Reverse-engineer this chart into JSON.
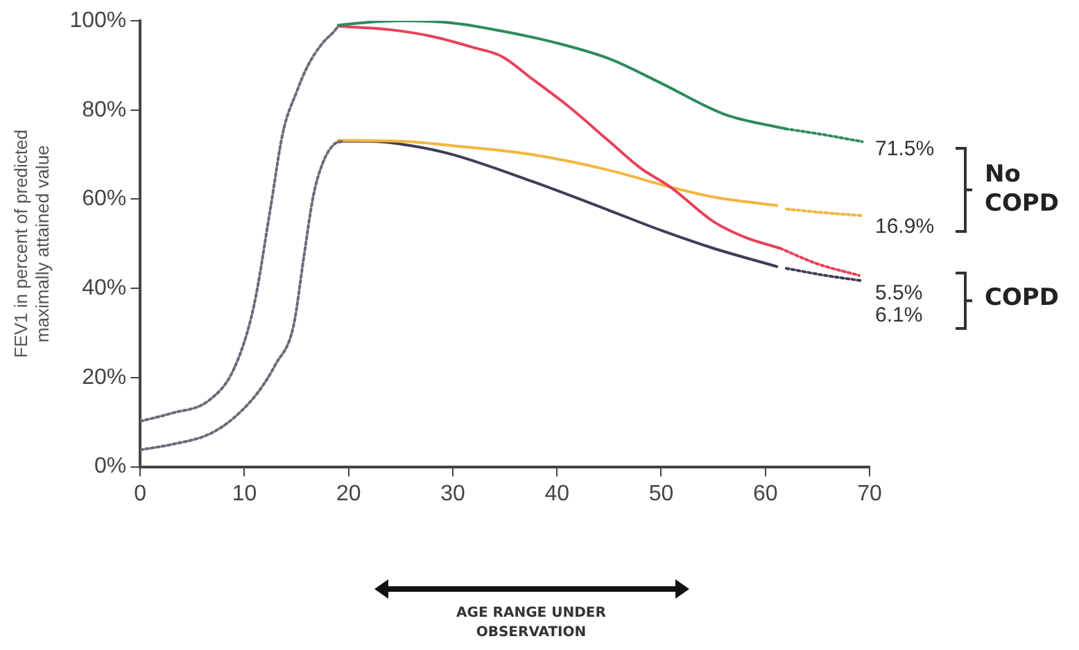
{
  "chart_data": {
    "type": "line",
    "ylabel": "FEV1 in percent of predicted maximally attained value",
    "xlim": [
      0,
      70
    ],
    "xticks": [
      0,
      10,
      20,
      30,
      40,
      50,
      60,
      70
    ],
    "ylim": [
      0,
      100
    ],
    "yticks": [
      {
        "value": 0,
        "label": "0%"
      },
      {
        "value": 20,
        "label": "20%"
      },
      {
        "value": 40,
        "label": "40%"
      },
      {
        "value": 60,
        "label": "60%"
      },
      {
        "value": 80,
        "label": "80%"
      },
      {
        "value": 100,
        "label": "100%"
      }
    ],
    "grid": false,
    "legend": false,
    "marker": "none",
    "series": [
      {
        "color": "#6a6a78",
        "line_style": "dotted",
        "x": [
          0,
          3,
          6.6,
          9,
          10.9,
          12.5,
          13.7,
          15,
          16.1,
          17.5,
          18.6,
          19
        ],
        "values": [
          10.2,
          12,
          14.9,
          22,
          36,
          58,
          75,
          84,
          90,
          95,
          97.6,
          98.8
        ]
      },
      {
        "color": "#6a6a78",
        "line_style": "dotted",
        "x": [
          0,
          3,
          6.6,
          9,
          11.4,
          13,
          14.7,
          15.7,
          16.6,
          17.5,
          18.6,
          19.5
        ],
        "values": [
          3.8,
          5,
          7.3,
          11,
          17,
          23,
          31.5,
          47,
          60.6,
          68,
          72.3,
          73
        ]
      },
      {
        "color": "#2e8b5e",
        "line_style": "solid",
        "x": [
          19,
          22,
          25,
          30,
          34.7,
          40,
          45,
          50,
          56.1,
          61.9
        ],
        "values": [
          99,
          99.7,
          100,
          99.5,
          97.7,
          95,
          91.5,
          86,
          79,
          75.8
        ]
      },
      {
        "color": "#2e8b5e",
        "line_style": "dotted",
        "x": [
          61.9,
          65.5,
          69.3
        ],
        "values": [
          75.8,
          74.5,
          72.9
        ]
      },
      {
        "color": "#e8415a",
        "line_style": "solid",
        "x": [
          19,
          24,
          28,
          32,
          34.7,
          37.6,
          41,
          45,
          48,
          50.9,
          55,
          58,
          61.4
        ],
        "values": [
          98.8,
          98,
          96.5,
          94,
          92,
          87,
          81,
          73,
          67,
          62.7,
          55,
          51.5,
          49
        ]
      },
      {
        "color": "#e8415a",
        "line_style": "dotted",
        "x": [
          61.4,
          65,
          69
        ],
        "values": [
          49,
          45.5,
          42.9
        ]
      },
      {
        "color": "#f2b63e",
        "line_style": "solid",
        "x": [
          19,
          25,
          30,
          37.6,
          45,
          50.9,
          55,
          61.1
        ],
        "values": [
          73.2,
          73,
          72,
          70,
          66.5,
          62.7,
          60.5,
          58.6
        ]
      },
      {
        "color": "#f2b63e",
        "line_style": "dotted",
        "x": [
          62,
          65.5,
          69.3
        ],
        "values": [
          57.8,
          57,
          56.3
        ]
      },
      {
        "color": "#3e3e58",
        "line_style": "solid",
        "x": [
          19,
          22,
          26,
          30,
          37.6,
          45,
          50,
          55,
          61.1
        ],
        "values": [
          73,
          73,
          72,
          70,
          64,
          57.5,
          53,
          49,
          44.9
        ]
      },
      {
        "color": "#3e3e58",
        "line_style": "dotted",
        "x": [
          62,
          65.5,
          69.3
        ],
        "values": [
          44.5,
          43,
          41.7
        ]
      }
    ],
    "annotations": [
      "71.5%",
      "16.9%",
      "5.5%",
      "6.1%",
      "No COPD",
      "COPD",
      "AGE RANGE UNDER OBSERVATION"
    ]
  }
}
